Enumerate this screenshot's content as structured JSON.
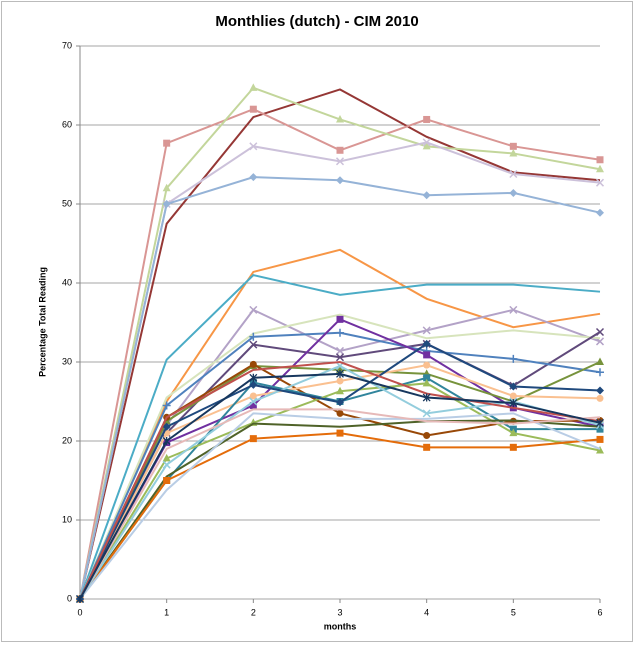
{
  "chart_data": {
    "type": "line",
    "title": "Monthlies (dutch) - CIM 2010",
    "x_label": "months",
    "y_label": "Percentage Total Reading",
    "x": [
      0,
      1,
      2,
      3,
      4,
      5,
      6
    ],
    "xlim": [
      0,
      6
    ],
    "xticks": [
      0,
      1,
      2,
      3,
      4,
      5,
      6
    ],
    "ylim": [
      0,
      70
    ],
    "yticks": [
      0,
      10,
      20,
      30,
      40,
      50,
      60,
      70
    ],
    "grid": true,
    "series": [
      {
        "color": "#953735",
        "marker": "none",
        "values": [
          0,
          47.5,
          61,
          64.5,
          58.5,
          54,
          53
        ]
      },
      {
        "color": "#D99694",
        "marker": "square",
        "values": [
          0,
          57.7,
          62,
          56.8,
          60.7,
          57.3,
          55.6
        ]
      },
      {
        "color": "#C3D69B",
        "marker": "triangle",
        "values": [
          0,
          52,
          64.7,
          60.7,
          57.3,
          56.4,
          54.4
        ]
      },
      {
        "color": "#CCC1DA",
        "marker": "x",
        "values": [
          0,
          50,
          57.3,
          55.4,
          57.8,
          53.8,
          52.7
        ]
      },
      {
        "color": "#95B3D7",
        "marker": "diamond",
        "values": [
          0,
          50,
          53.4,
          53,
          51.1,
          51.4,
          48.9
        ]
      },
      {
        "color": "#F79646",
        "marker": "none",
        "values": [
          0,
          25,
          41.4,
          44.2,
          38,
          34.4,
          36.1
        ]
      },
      {
        "color": "#4BACC6",
        "marker": "none",
        "values": [
          0,
          30.3,
          41,
          38.5,
          39.8,
          39.8,
          38.9
        ]
      },
      {
        "color": "#B3A2C7",
        "marker": "x",
        "values": [
          0,
          22,
          36.6,
          31.4,
          34,
          36.6,
          32.6
        ]
      },
      {
        "color": "#D7E4BC",
        "marker": "none",
        "values": [
          0,
          25.5,
          33.6,
          36,
          33,
          34,
          33
        ]
      },
      {
        "color": "#604A7B",
        "marker": "x",
        "values": [
          0,
          21,
          32.2,
          30.6,
          32.3,
          27,
          33.8
        ]
      },
      {
        "color": "#4F81BD",
        "marker": "plus",
        "values": [
          0,
          24.5,
          33.2,
          33.7,
          31.4,
          30.4,
          28.7
        ]
      },
      {
        "color": "#7030A0",
        "marker": "square",
        "values": [
          0,
          19.8,
          24.5,
          35.4,
          30.9,
          24.2,
          21.8
        ]
      },
      {
        "color": "#77933C",
        "marker": "triangle",
        "values": [
          0,
          22.5,
          29.5,
          29,
          28.5,
          25,
          30
        ]
      },
      {
        "color": "#984807",
        "marker": "circle",
        "values": [
          0,
          23,
          29.7,
          23.5,
          20.7,
          22.5,
          22.6
        ]
      },
      {
        "color": "#FAC090",
        "marker": "circle",
        "values": [
          0,
          21,
          25.7,
          27.6,
          29.6,
          25.7,
          25.4
        ]
      },
      {
        "color": "#31859C",
        "marker": "square",
        "values": [
          0,
          15,
          27.4,
          25,
          28,
          21.5,
          21.5
        ]
      },
      {
        "color": "#9BBB59",
        "marker": "triangle",
        "values": [
          0,
          17.8,
          22.3,
          26.3,
          27.3,
          21,
          18.8
        ]
      },
      {
        "color": "#4F6228",
        "marker": "none",
        "values": [
          0,
          15.5,
          22.2,
          21.8,
          22.5,
          22.6,
          21.8
        ]
      },
      {
        "color": "#E46C0A",
        "marker": "square",
        "values": [
          0,
          15,
          20.3,
          21,
          19.2,
          19.2,
          20.2
        ]
      },
      {
        "color": "#B9CDE5",
        "marker": "none",
        "values": [
          0,
          13.8,
          23.5,
          22.8,
          22.8,
          23.5,
          19
        ]
      },
      {
        "color": "#93CDDD",
        "marker": "x",
        "values": [
          0,
          17,
          25,
          29.5,
          23.5,
          25,
          22
        ]
      },
      {
        "color": "#1F497D",
        "marker": "diamond",
        "values": [
          0,
          21.8,
          27.1,
          24.9,
          32.3,
          26.9,
          26.4
        ]
      },
      {
        "color": "#C0504D",
        "marker": "none",
        "values": [
          0,
          23,
          29,
          30,
          26,
          24.2,
          22.5
        ]
      },
      {
        "color": "#E6B9B8",
        "marker": "none",
        "values": [
          0,
          19,
          24,
          24,
          22.5,
          22.2,
          23
        ]
      },
      {
        "color": "#17375E",
        "marker": "star",
        "values": [
          0,
          20,
          28,
          28.5,
          25.5,
          24.8,
          22.3
        ]
      }
    ]
  }
}
